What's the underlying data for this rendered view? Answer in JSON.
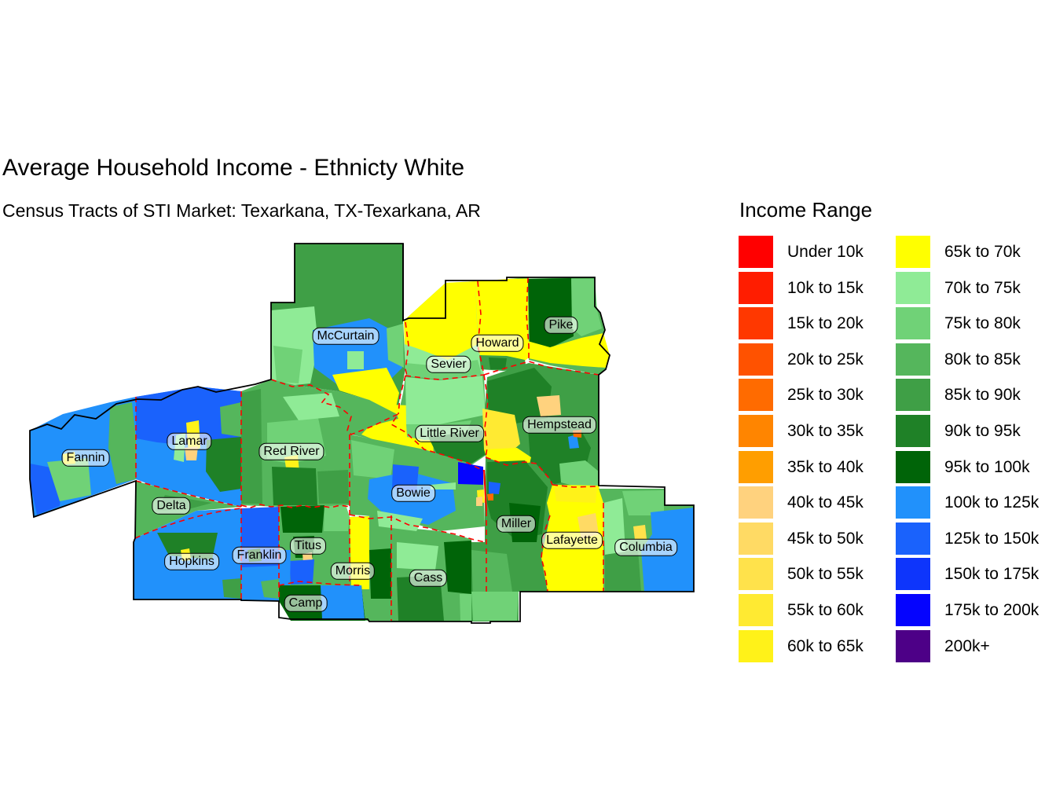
{
  "title": "Average Household Income - Ethnicty White",
  "subtitle": "Census Tracts of STI Market: Texarkana, TX-Texarkana, AR",
  "legend": {
    "title": "Income Range",
    "items": [
      {
        "label": "Under 10k",
        "color_key": "r00"
      },
      {
        "label": "10k to 15k",
        "color_key": "r10"
      },
      {
        "label": "15k to 20k",
        "color_key": "r15"
      },
      {
        "label": "20k to 25k",
        "color_key": "r20"
      },
      {
        "label": "25k to 30k",
        "color_key": "r25"
      },
      {
        "label": "30k to 35k",
        "color_key": "r30"
      },
      {
        "label": "35k to 40k",
        "color_key": "r35"
      },
      {
        "label": "40k to 45k",
        "color_key": "y40"
      },
      {
        "label": "45k to 50k",
        "color_key": "y45"
      },
      {
        "label": "50k to 55k",
        "color_key": "y50"
      },
      {
        "label": "55k to 60k",
        "color_key": "y55"
      },
      {
        "label": "60k to 65k",
        "color_key": "y60"
      },
      {
        "label": "65k to 70k",
        "color_key": "y65"
      },
      {
        "label": "70k to 75k",
        "color_key": "g70"
      },
      {
        "label": "75k to 80k",
        "color_key": "g75"
      },
      {
        "label": "80k to 85k",
        "color_key": "g80"
      },
      {
        "label": "85k to 90k",
        "color_key": "g85"
      },
      {
        "label": "90k to 95k",
        "color_key": "g90"
      },
      {
        "label": "95k to 100k",
        "color_key": "g95"
      },
      {
        "label": "100k to 125k",
        "color_key": "b100"
      },
      {
        "label": "125k to 150k",
        "color_key": "b125"
      },
      {
        "label": "150k to 175k",
        "color_key": "b150"
      },
      {
        "label": "175k to 200k",
        "color_key": "b175"
      },
      {
        "label": "200k+",
        "color_key": "p200"
      }
    ]
  },
  "palette": {
    "r00": "#FF0000",
    "r10": "#FF1D00",
    "r15": "#FF3800",
    "r20": "#FF5200",
    "r25": "#FF6B00",
    "r30": "#FF8500",
    "r35": "#FF9E00",
    "y40": "#FFD27E",
    "y45": "#FFDA64",
    "y50": "#FFE24B",
    "y55": "#FFEA32",
    "y60": "#FFF219",
    "y65": "#FFFF00",
    "g70": "#8FEB96",
    "g75": "#70D277",
    "g80": "#55B65C",
    "g85": "#3F9F46",
    "g90": "#1F8127",
    "g95": "#006408",
    "b100": "#2191FB",
    "b125": "#1A62FC",
    "b150": "#0E35FB",
    "b175": "#0504FE",
    "p200": "#4D0087"
  },
  "map": {
    "outer_border_color": "#000000",
    "county_line_color": "#FF0000",
    "state_line_color": "#FF0000"
  },
  "counties": [
    {
      "label": "McCurtain"
    },
    {
      "label": "Sevier"
    },
    {
      "label": "Howard"
    },
    {
      "label": "Pike"
    },
    {
      "label": "Little River"
    },
    {
      "label": "Hempstead"
    },
    {
      "label": "Fannin"
    },
    {
      "label": "Lamar"
    },
    {
      "label": "Red River"
    },
    {
      "label": "Delta"
    },
    {
      "label": "Hopkins"
    },
    {
      "label": "Franklin"
    },
    {
      "label": "Titus"
    },
    {
      "label": "Morris"
    },
    {
      "label": "Camp"
    },
    {
      "label": "Cass"
    },
    {
      "label": "Bowie"
    },
    {
      "label": "Miller"
    },
    {
      "label": "Lafayette"
    },
    {
      "label": "Columbia"
    }
  ]
}
